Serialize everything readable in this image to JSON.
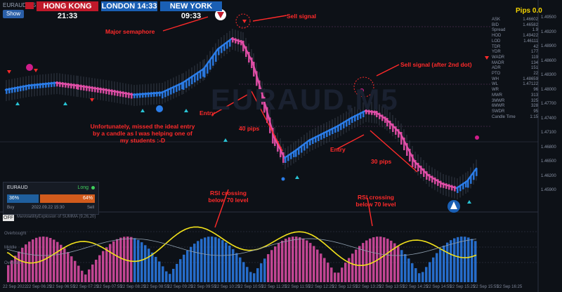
{
  "header": {
    "symbol": "EURAUD,M5",
    "show_button": "Show",
    "clocks": [
      {
        "city": "HONG KONG",
        "time": "21:33"
      },
      {
        "city": "LONDON",
        "time": "14:33"
      },
      {
        "city": "NEW YORK",
        "time": "09:33"
      }
    ]
  },
  "watermark": "EURAUD,M5",
  "annotations": {
    "sell_signal": "Sell signal",
    "major_semaphore": "Major semaphore",
    "sell_signal_2": "Sell signal (after 2nd dot)",
    "entry_1": "Entry",
    "entry_2": "Entry",
    "pips_1": "40 pips",
    "pips_2": "30 pips",
    "missed_entry": "Unfortunately, missed the ideal entry by a candle as I was helping one of my students :-D",
    "rsi_cross_1": "RSI crossing below 70 level",
    "rsi_cross_2": "RSI crossing below 70 level"
  },
  "stats_panel": {
    "pips": "Pips 0.0",
    "rows": [
      {
        "label": "ASK",
        "value": "1.46602"
      },
      {
        "label": "BID",
        "value": "1.46582"
      },
      {
        "label": "Spread",
        "value": "1.9"
      },
      {
        "label": "HOD",
        "value": "1.49422"
      },
      {
        "label": "LOD",
        "value": "1.46111"
      },
      {
        "label": "TDR",
        "value": "42"
      },
      {
        "label": "YDR",
        "value": "177"
      },
      {
        "label": "WADR",
        "value": "119"
      },
      {
        "label": "MADR",
        "value": "134"
      },
      {
        "label": "ADR",
        "value": "151"
      },
      {
        "label": "PTO",
        "value": "22"
      },
      {
        "label": "WH",
        "value": "1.48659"
      },
      {
        "label": "WL",
        "value": "1.47122"
      },
      {
        "label": "WR",
        "value": "96"
      },
      {
        "label": "MWR",
        "value": "313"
      },
      {
        "label": "3MWR",
        "value": "325"
      },
      {
        "label": "6MWR",
        "value": "328"
      },
      {
        "label": "SWDR",
        "value": "95"
      },
      {
        "label": "Candle Time",
        "value": "1:15"
      }
    ]
  },
  "price_axis": [
    "1.49500",
    "1.49200",
    "1.48900",
    "1.48600",
    "1.48300",
    "1.48000",
    "1.47700",
    "1.47400",
    "1.47100",
    "1.46800",
    "1.46500",
    "1.46200",
    "1.45900"
  ],
  "trade_widget": {
    "symbol": "EURAUD",
    "direction": "Long",
    "buy_pct": "36%",
    "sell_pct": "64%",
    "buy_label": "Buy",
    "date": "2022.09.22 15:30",
    "sell_label": "Sell"
  },
  "indicator": {
    "toggle": "OFF",
    "name": "MaVolatilityExplosion of SUMMA (9,26,20)",
    "levels": [
      "Overbought",
      "Middle",
      "Oversold"
    ]
  },
  "time_axis": [
    "22 Sep 2022",
    "22 Sep 06:25",
    "22 Sep 06:55",
    "22 Sep 07:25",
    "22 Sep 07:55",
    "22 Sep 08:25",
    "22 Sep 08:55",
    "22 Sep 09:25",
    "22 Sep 09:55",
    "22 Sep 10:25",
    "22 Sep 10:55",
    "22 Sep 11:25",
    "22 Sep 11:55",
    "22 Sep 12:25",
    "22 Sep 12:55",
    "22 Sep 13:25",
    "22 Sep 13:55",
    "22 Sep 14:25",
    "22 Sep 14:55",
    "22 Sep 15:25",
    "22 Sep 15:55",
    "22 Sep 16:25"
  ],
  "colors": {
    "background": "#0d1117",
    "ma_up": "#2b7de9",
    "ma_down": "#e24fa8",
    "annotation": "#ff2a2a",
    "rsi": "#f2e21b",
    "pips": "#f5d400"
  }
}
